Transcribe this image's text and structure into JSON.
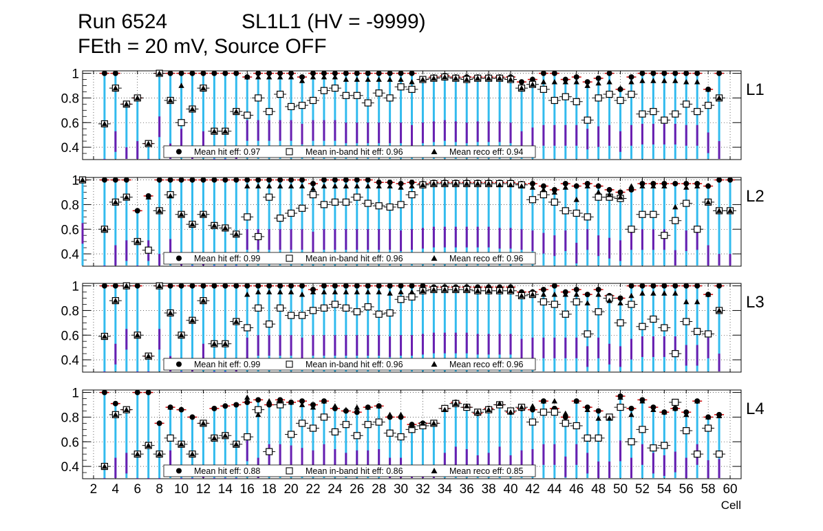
{
  "header": {
    "run": "Run 6524",
    "chamber": "SL1L1 (HV = -9999)",
    "settings": "FEth = 20 mV, Source OFF"
  },
  "chart_data": [
    {
      "type": "scatter",
      "title": "L1",
      "xlabel": "Cell",
      "ylabel": "",
      "xlim": [
        1,
        61
      ],
      "ylim": [
        0.3,
        1.02
      ],
      "yticks": [
        "0.4",
        "0.6",
        "0.8",
        "1"
      ],
      "legend": {
        "placement": "bottom",
        "entries": [
          "Mean hit  eff: 0.97",
          "Mean in-band hit eff: 0.96",
          "Mean reco eff: 0.94"
        ]
      },
      "x": [
        3,
        4,
        5,
        6,
        7,
        8,
        9,
        10,
        11,
        12,
        13,
        14,
        15,
        16,
        17,
        18,
        19,
        20,
        21,
        22,
        23,
        24,
        25,
        26,
        27,
        28,
        29,
        30,
        31,
        32,
        33,
        34,
        35,
        36,
        37,
        38,
        39,
        40,
        41,
        42,
        43,
        44,
        45,
        46,
        47,
        48,
        49,
        50,
        51,
        52,
        53,
        54,
        55,
        56,
        57,
        58,
        59
      ],
      "series": [
        {
          "name": "Mean hit  eff",
          "marker": "circle",
          "values": [
            1.0,
            1.0,
            0.75,
            0.8,
            0.43,
            1.0,
            1.0,
            1.0,
            1.0,
            1.0,
            1.0,
            1.0,
            1.0,
            0.97,
            1.0,
            1.0,
            1.0,
            1.0,
            0.97,
            1.0,
            1.0,
            1.0,
            1.0,
            1.0,
            1.0,
            1.0,
            1.0,
            1.0,
            1.0,
            0.95,
            0.97,
            0.98,
            0.97,
            0.97,
            0.97,
            0.97,
            0.97,
            0.97,
            0.93,
            0.95,
            1.0,
            1.0,
            0.95,
            0.97,
            0.93,
            0.96,
            1.0,
            0.87,
            0.97,
            1.0,
            1.0,
            1.0,
            1.0,
            1.0,
            1.0,
            0.87,
            1.0
          ]
        },
        {
          "name": "Mean in-band hit eff",
          "marker": "square-open",
          "values": [
            0.59,
            0.88,
            0.75,
            0.8,
            0.43,
            1.0,
            0.78,
            0.6,
            0.71,
            0.88,
            0.53,
            0.53,
            0.69,
            0.66,
            0.8,
            0.69,
            0.83,
            0.73,
            0.74,
            0.78,
            0.86,
            0.88,
            0.82,
            0.82,
            0.76,
            0.84,
            0.8,
            0.89,
            0.87,
            0.95,
            0.96,
            0.97,
            0.96,
            0.95,
            0.96,
            0.96,
            0.96,
            0.95,
            0.88,
            0.91,
            0.87,
            0.78,
            0.81,
            0.77,
            0.62,
            0.8,
            0.83,
            0.78,
            0.83,
            0.67,
            0.69,
            0.62,
            0.67,
            0.75,
            0.69,
            0.74,
            0.8
          ]
        },
        {
          "name": "Mean reco eff",
          "marker": "triangle",
          "values": [
            0.59,
            0.88,
            0.75,
            0.8,
            0.43,
            1.0,
            0.78,
            0.9,
            0.71,
            0.88,
            0.53,
            0.53,
            0.69,
            0.97,
            0.97,
            0.97,
            0.97,
            0.97,
            0.94,
            0.97,
            0.97,
            0.97,
            0.95,
            0.95,
            0.95,
            0.95,
            0.95,
            0.95,
            0.93,
            0.95,
            0.96,
            0.97,
            0.96,
            0.95,
            0.96,
            0.96,
            0.96,
            0.95,
            0.88,
            0.91,
            0.93,
            0.93,
            0.93,
            0.93,
            0.9,
            0.92,
            0.93,
            0.88,
            0.93,
            0.94,
            0.94,
            0.94,
            0.94,
            0.93,
            0.93,
            0.87,
            0.8
          ]
        }
      ]
    },
    {
      "type": "scatter",
      "title": "L2",
      "xlabel": "Cell",
      "ylabel": "",
      "xlim": [
        1,
        61
      ],
      "ylim": [
        0.3,
        1.02
      ],
      "yticks": [
        "0.4",
        "0.6",
        "0.8",
        "1"
      ],
      "legend": {
        "placement": "bottom",
        "entries": [
          "Mean hit  eff: 0.99",
          "Mean in-band hit eff: 0.96",
          "Mean reco eff: 0.96"
        ]
      },
      "x": [
        1,
        3,
        4,
        5,
        6,
        7,
        8,
        9,
        10,
        11,
        12,
        13,
        14,
        15,
        16,
        17,
        18,
        19,
        20,
        21,
        22,
        23,
        24,
        25,
        26,
        27,
        28,
        29,
        30,
        31,
        32,
        33,
        34,
        35,
        36,
        37,
        38,
        39,
        40,
        41,
        42,
        43,
        44,
        45,
        46,
        47,
        48,
        49,
        50,
        51,
        52,
        53,
        54,
        55,
        56,
        57,
        58,
        59,
        60
      ],
      "series": [
        {
          "name": "Mean hit  eff",
          "marker": "circle",
          "values": [
            1.0,
            1.0,
            1.0,
            1.0,
            0.75,
            0.87,
            1.0,
            1.0,
            1.0,
            1.0,
            1.0,
            1.0,
            1.0,
            1.0,
            1.0,
            1.0,
            1.0,
            1.0,
            1.0,
            1.0,
            0.97,
            1.0,
            1.0,
            1.0,
            1.0,
            1.0,
            0.98,
            0.98,
            0.97,
            0.98,
            0.97,
            0.98,
            0.98,
            0.98,
            0.98,
            0.98,
            0.98,
            0.98,
            0.98,
            0.97,
            0.97,
            0.95,
            0.92,
            0.97,
            0.95,
            0.97,
            0.95,
            0.92,
            0.9,
            0.92,
            0.97,
            0.97,
            0.97,
            0.97,
            0.97,
            0.97,
            0.95,
            1.0,
            1.0
          ]
        },
        {
          "name": "Mean in-band hit eff",
          "marker": "square-open",
          "values": [
            1.0,
            0.6,
            0.82,
            0.86,
            0.5,
            0.43,
            0.75,
            0.88,
            0.72,
            0.64,
            0.72,
            0.63,
            0.61,
            0.56,
            0.7,
            0.54,
            0.86,
            0.69,
            0.73,
            0.77,
            0.88,
            0.8,
            0.82,
            0.82,
            0.86,
            0.81,
            0.79,
            0.78,
            0.8,
            0.88,
            0.96,
            0.97,
            0.97,
            0.97,
            0.97,
            0.97,
            0.97,
            0.97,
            0.97,
            0.96,
            0.84,
            0.88,
            0.82,
            0.75,
            0.73,
            0.7,
            0.86,
            0.86,
            0.85,
            0.6,
            0.72,
            0.72,
            0.55,
            0.67,
            0.81,
            0.6,
            0.82,
            0.75,
            0.75
          ]
        },
        {
          "name": "Mean reco eff",
          "marker": "triangle",
          "values": [
            1.0,
            0.6,
            0.82,
            0.86,
            0.5,
            0.86,
            0.75,
            0.87,
            0.72,
            0.64,
            0.72,
            0.63,
            0.61,
            0.56,
            0.95,
            0.95,
            0.95,
            0.95,
            0.95,
            0.95,
            0.93,
            0.95,
            0.95,
            0.95,
            0.95,
            0.95,
            0.95,
            0.95,
            0.94,
            0.95,
            0.96,
            0.97,
            0.97,
            0.97,
            0.97,
            0.97,
            0.97,
            0.96,
            0.96,
            0.95,
            0.94,
            0.92,
            0.9,
            0.94,
            0.84,
            0.95,
            0.9,
            0.88,
            0.86,
            0.95,
            0.95,
            0.95,
            0.95,
            0.78,
            0.94,
            0.95,
            0.82,
            0.75,
            0.75
          ]
        }
      ]
    },
    {
      "type": "scatter",
      "title": "L3",
      "xlabel": "Cell",
      "ylabel": "",
      "xlim": [
        1,
        61
      ],
      "ylim": [
        0.3,
        1.02
      ],
      "yticks": [
        "0.4",
        "0.6",
        "0.8",
        "1"
      ],
      "legend": {
        "placement": "bottom",
        "entries": [
          "Mean hit  eff: 0.99",
          "Mean in-band hit eff: 0.96",
          "Mean reco eff: 0.96"
        ]
      },
      "x": [
        3,
        4,
        5,
        6,
        7,
        8,
        9,
        10,
        11,
        12,
        13,
        14,
        15,
        16,
        17,
        18,
        19,
        20,
        21,
        22,
        23,
        24,
        25,
        26,
        27,
        28,
        29,
        30,
        31,
        32,
        33,
        34,
        35,
        36,
        37,
        38,
        39,
        40,
        41,
        42,
        43,
        44,
        45,
        46,
        47,
        48,
        49,
        50,
        51,
        52,
        53,
        54,
        55,
        56,
        57,
        58,
        59
      ],
      "series": [
        {
          "name": "Mean hit  eff",
          "marker": "circle",
          "values": [
            1.0,
            1.0,
            1.0,
            1.0,
            0.43,
            1.0,
            1.0,
            1.0,
            1.0,
            1.0,
            1.0,
            1.0,
            1.0,
            1.0,
            1.0,
            1.0,
            1.0,
            1.0,
            1.0,
            0.97,
            1.0,
            1.0,
            1.0,
            1.0,
            1.0,
            1.0,
            1.0,
            1.0,
            1.0,
            1.0,
            0.99,
            0.99,
            0.99,
            0.99,
            0.99,
            0.99,
            0.99,
            0.99,
            0.95,
            0.95,
            0.97,
            1.0,
            0.95,
            0.97,
            0.93,
            0.97,
            0.92,
            0.9,
            1.0,
            1.0,
            1.0,
            1.0,
            1.0,
            1.0,
            1.0,
            0.93,
            1.0
          ]
        },
        {
          "name": "Mean in-band hit eff",
          "marker": "square-open",
          "values": [
            0.59,
            0.88,
            1.0,
            0.6,
            0.43,
            1.0,
            0.78,
            0.6,
            0.72,
            0.88,
            0.53,
            0.53,
            0.71,
            0.66,
            0.82,
            0.69,
            0.82,
            0.76,
            0.76,
            0.8,
            0.82,
            0.85,
            0.82,
            0.79,
            0.83,
            0.77,
            0.78,
            0.89,
            0.91,
            0.96,
            0.97,
            0.97,
            0.97,
            0.97,
            0.96,
            0.96,
            0.96,
            0.96,
            0.92,
            0.93,
            0.87,
            0.85,
            0.77,
            0.87,
            0.61,
            0.79,
            0.9,
            0.7,
            0.85,
            0.67,
            0.73,
            0.66,
            0.45,
            0.71,
            0.63,
            0.61,
            0.8
          ]
        },
        {
          "name": "Mean reco eff",
          "marker": "triangle",
          "values": [
            0.59,
            0.88,
            1.0,
            0.6,
            0.43,
            1.0,
            0.78,
            0.6,
            0.72,
            0.88,
            0.53,
            0.53,
            0.71,
            0.93,
            0.95,
            0.95,
            0.95,
            0.95,
            0.93,
            0.95,
            0.95,
            0.95,
            0.95,
            0.95,
            0.95,
            0.95,
            0.94,
            0.95,
            0.95,
            0.96,
            0.97,
            0.97,
            0.97,
            0.97,
            0.96,
            0.96,
            0.96,
            0.96,
            0.92,
            0.93,
            0.93,
            0.93,
            0.93,
            0.93,
            0.86,
            0.93,
            0.88,
            0.86,
            0.92,
            0.94,
            0.94,
            0.94,
            0.94,
            0.87,
            0.87,
            0.93,
            0.8
          ]
        }
      ]
    },
    {
      "type": "scatter",
      "title": "L4",
      "xlabel": "Cell",
      "ylabel": "",
      "xlim": [
        1,
        61
      ],
      "ylim": [
        0.3,
        1.02
      ],
      "yticks": [
        "0.4",
        "0.6",
        "0.8",
        "1"
      ],
      "xticks": [
        "2",
        "4",
        "6",
        "8",
        "10",
        "12",
        "14",
        "16",
        "18",
        "20",
        "22",
        "24",
        "26",
        "28",
        "30",
        "32",
        "34",
        "36",
        "38",
        "40",
        "42",
        "44",
        "46",
        "48",
        "50",
        "52",
        "54",
        "56",
        "58",
        "60"
      ],
      "legend": {
        "placement": "bottom",
        "entries": [
          "Mean hit  eff: 0.88",
          "Mean in-band hit eff: 0.86",
          "Mean reco eff: 0.85"
        ]
      },
      "x": [
        3,
        4,
        5,
        6,
        7,
        8,
        9,
        10,
        11,
        12,
        13,
        14,
        15,
        16,
        17,
        18,
        19,
        20,
        21,
        22,
        23,
        24,
        25,
        26,
        27,
        28,
        29,
        30,
        31,
        32,
        33,
        34,
        35,
        36,
        37,
        38,
        39,
        40,
        41,
        42,
        43,
        44,
        45,
        46,
        47,
        48,
        49,
        50,
        51,
        52,
        53,
        54,
        55,
        56,
        57,
        58,
        59
      ],
      "series": [
        {
          "name": "Mean hit  eff",
          "marker": "circle",
          "values": [
            1.0,
            0.91,
            0.86,
            1.0,
            1.0,
            0.75,
            0.88,
            0.86,
            0.8,
            0.75,
            0.87,
            0.89,
            0.9,
            0.92,
            0.94,
            0.9,
            0.94,
            0.92,
            0.93,
            0.9,
            0.93,
            0.87,
            0.85,
            0.84,
            0.88,
            0.89,
            0.8,
            0.8,
            0.74,
            0.75,
            0.75,
            0.87,
            0.92,
            0.88,
            0.83,
            0.87,
            0.9,
            0.84,
            0.87,
            0.86,
            0.93,
            0.87,
            0.8,
            0.93,
            0.88,
            0.85,
            0.8,
            0.97,
            0.87,
            0.94,
            0.88,
            0.84,
            0.87,
            0.84,
            0.93,
            0.8,
            0.82
          ]
        },
        {
          "name": "Mean in-band hit eff",
          "marker": "square-open",
          "values": [
            0.4,
            0.82,
            0.86,
            0.5,
            0.57,
            0.5,
            0.63,
            0.58,
            0.5,
            0.75,
            0.63,
            0.65,
            0.58,
            0.64,
            0.86,
            0.52,
            0.9,
            0.66,
            0.75,
            0.71,
            0.8,
            0.68,
            0.74,
            0.65,
            0.74,
            0.76,
            0.67,
            0.64,
            0.7,
            0.73,
            0.75,
            0.87,
            0.91,
            0.88,
            0.84,
            0.86,
            0.9,
            0.85,
            0.88,
            0.76,
            0.84,
            0.84,
            0.75,
            0.73,
            0.63,
            0.63,
            0.8,
            0.88,
            0.6,
            0.7,
            0.55,
            0.57,
            0.92,
            0.69,
            0.5,
            0.71,
            0.5
          ]
        },
        {
          "name": "Mean reco eff",
          "marker": "triangle",
          "values": [
            0.4,
            0.82,
            0.86,
            0.5,
            0.57,
            0.5,
            0.88,
            0.58,
            0.5,
            0.75,
            0.63,
            0.65,
            0.58,
            0.96,
            0.82,
            0.93,
            0.93,
            0.92,
            0.9,
            0.88,
            0.93,
            0.89,
            0.86,
            0.88,
            0.88,
            0.89,
            0.82,
            0.82,
            0.73,
            0.75,
            0.75,
            0.86,
            0.91,
            0.89,
            0.84,
            0.86,
            0.91,
            0.84,
            0.88,
            0.89,
            0.93,
            0.93,
            0.83,
            0.93,
            0.86,
            0.79,
            0.79,
            0.96,
            0.82,
            0.93,
            0.86,
            0.84,
            0.87,
            0.82,
            0.93,
            0.8,
            0.81
          ]
        }
      ]
    }
  ]
}
